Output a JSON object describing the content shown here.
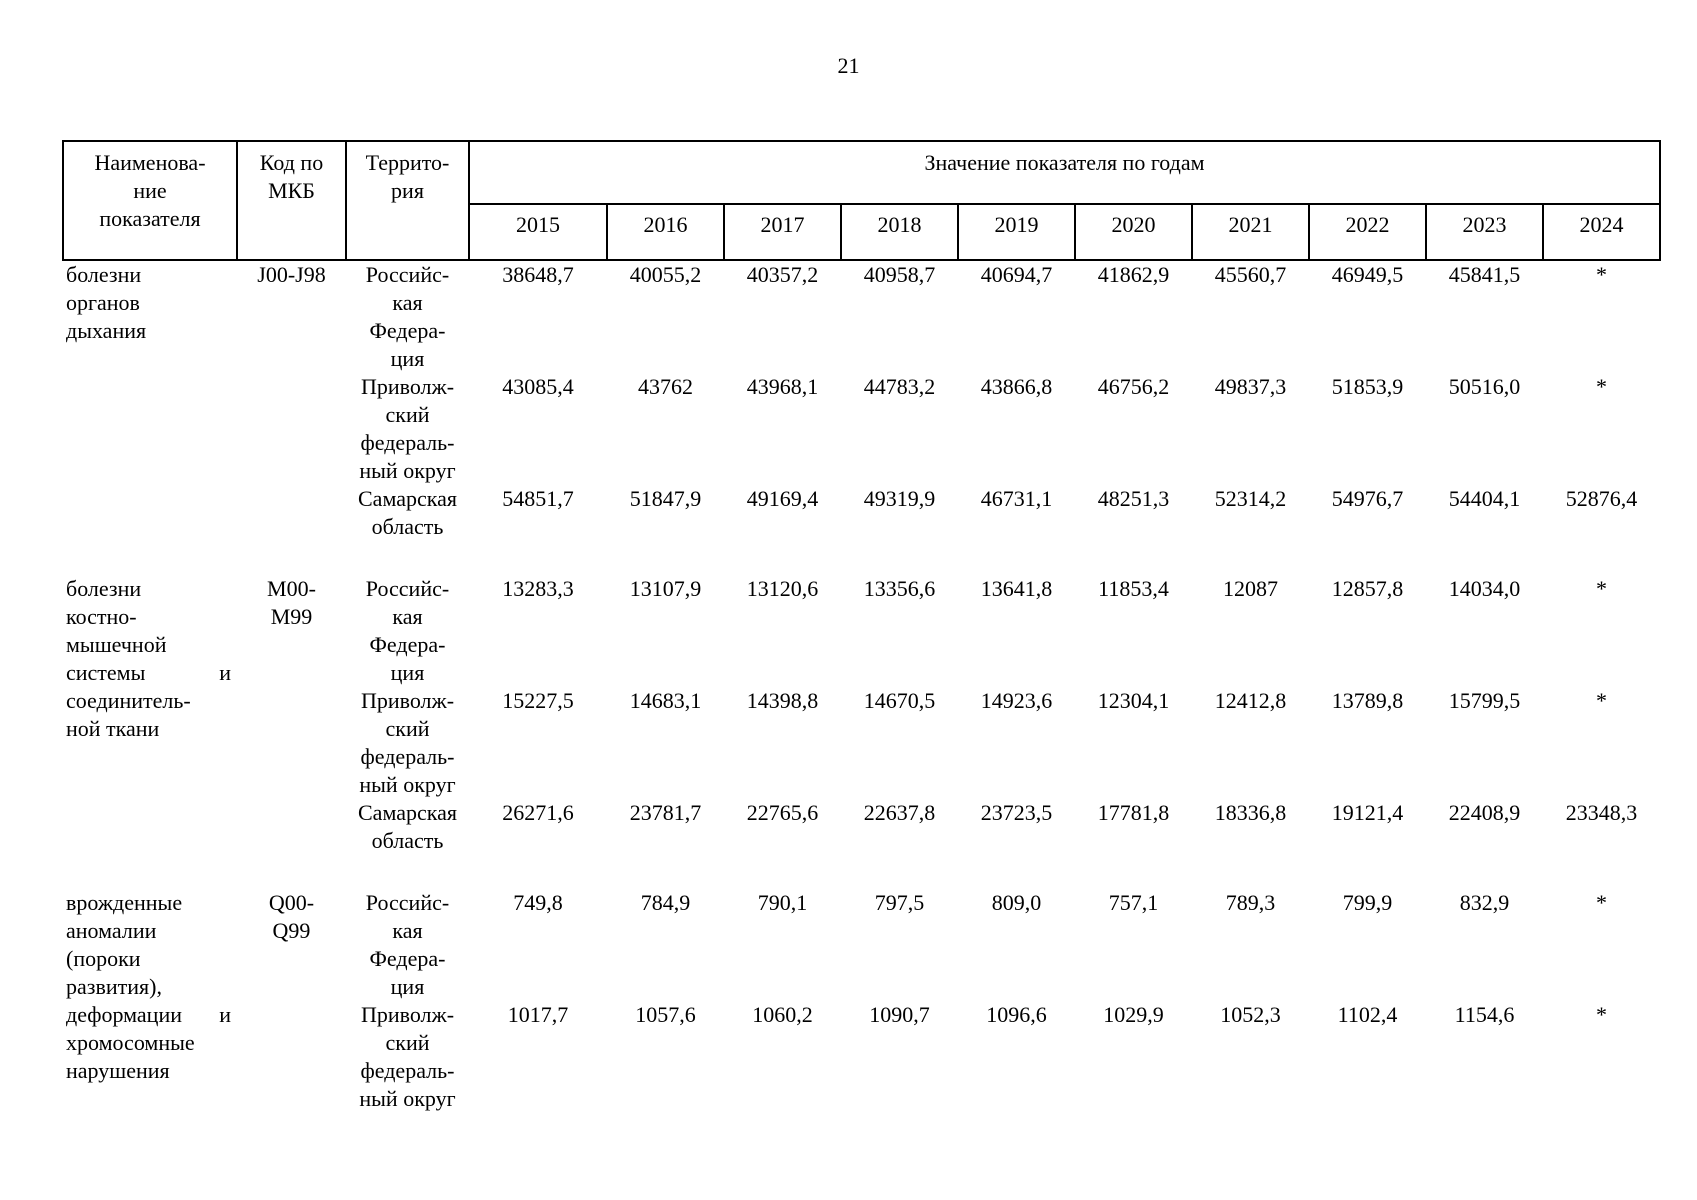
{
  "page_number": "21",
  "table": {
    "header": {
      "indicator_lines": [
        "Наименова-",
        "ние",
        "показателя"
      ],
      "code_lines": [
        "Код по",
        "МКБ"
      ],
      "territory_lines": [
        "Террито-",
        "рия"
      ],
      "values_by_year": "Значение показателя по годам"
    },
    "years": [
      "2015",
      "2016",
      "2017",
      "2018",
      "2019",
      "2020",
      "2021",
      "2022",
      "2023",
      "2024"
    ],
    "groups": [
      {
        "indicator_lines": [
          "болезни",
          "органов",
          "дыхания"
        ],
        "code_lines": [
          "J00-J98"
        ],
        "rows": [
          {
            "territory_lines": [
              "Российс-",
              "кая",
              "Федера-",
              "ция"
            ],
            "values": [
              "38648,7",
              "40055,2",
              "40357,2",
              "40958,7",
              "40694,7",
              "41862,9",
              "45560,7",
              "46949,5",
              "45841,5",
              "*"
            ]
          },
          {
            "territory_lines": [
              "Приволж-",
              "ский",
              "федераль-",
              "ный округ"
            ],
            "values": [
              "43085,4",
              "43762",
              "43968,1",
              "44783,2",
              "43866,8",
              "46756,2",
              "49837,3",
              "51853,9",
              "50516,0",
              "*"
            ]
          },
          {
            "territory_lines": [
              "Самарская",
              "область"
            ],
            "values": [
              "54851,7",
              "51847,9",
              "49169,4",
              "49319,9",
              "46731,1",
              "48251,3",
              "52314,2",
              "54976,7",
              "54404,1",
              "52876,4"
            ]
          }
        ]
      },
      {
        "indicator_lines": [
          "болезни",
          "костно-",
          "мышечной",
          "системы\tи",
          "соединитель-",
          "ной ткани"
        ],
        "code_lines": [
          "M00-",
          "M99"
        ],
        "rows": [
          {
            "territory_lines": [
              "Российс-",
              "кая",
              "Федера-",
              "ция"
            ],
            "values": [
              "13283,3",
              "13107,9",
              "13120,6",
              "13356,6",
              "13641,8",
              "11853,4",
              "12087",
              "12857,8",
              "14034,0",
              "*"
            ]
          },
          {
            "territory_lines": [
              "Приволж-",
              "ский",
              "федераль-",
              "ный округ"
            ],
            "values": [
              "15227,5",
              "14683,1",
              "14398,8",
              "14670,5",
              "14923,6",
              "12304,1",
              "12412,8",
              "13789,8",
              "15799,5",
              "*"
            ]
          },
          {
            "territory_lines": [
              "Самарская",
              "область"
            ],
            "values": [
              "26271,6",
              "23781,7",
              "22765,6",
              "22637,8",
              "23723,5",
              "17781,8",
              "18336,8",
              "19121,4",
              "22408,9",
              "23348,3"
            ]
          }
        ]
      },
      {
        "indicator_lines": [
          "врожденные",
          "аномалии",
          "(пороки",
          "развития),",
          "деформации\tи",
          "хромосомные",
          "нарушения"
        ],
        "code_lines": [
          "Q00-",
          "Q99"
        ],
        "rows": [
          {
            "territory_lines": [
              "Российс-",
              "кая",
              "Федера-",
              "ция"
            ],
            "values": [
              "749,8",
              "784,9",
              "790,1",
              "797,5",
              "809,0",
              "757,1",
              "789,3",
              "799,9",
              "832,9",
              "*"
            ]
          },
          {
            "territory_lines": [
              "Приволж-",
              "ский",
              "федераль-",
              "ный округ"
            ],
            "values": [
              "1017,7",
              "1057,6",
              "1060,2",
              "1090,7",
              "1096,6",
              "1029,9",
              "1052,3",
              "1102,4",
              "1154,6",
              "*"
            ]
          }
        ]
      }
    ]
  }
}
